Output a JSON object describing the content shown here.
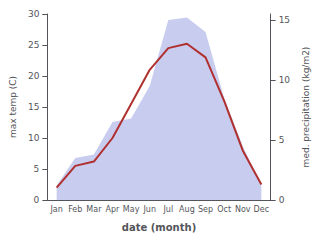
{
  "chart_data": {
    "type": "line",
    "categories": [
      "Jan",
      "Feb",
      "Mar",
      "Apr",
      "May",
      "Jun",
      "Jul",
      "Aug",
      "Sep",
      "Oct",
      "Nov",
      "Dec"
    ],
    "xlabel": "date (month)",
    "ylabel": "max temp (C)",
    "y2label": "med. precipitation (kg/m2)",
    "series": [
      {
        "type": "area",
        "axis": "y2",
        "color": "#b0b8e8",
        "values": [
          1.2,
          3.5,
          3.8,
          6.5,
          6.8,
          9.5,
          15.0,
          15.2,
          14.0,
          8.5,
          4.5,
          1.2
        ]
      },
      {
        "type": "line",
        "color": "#b03030",
        "values": [
          2.0,
          5.5,
          6.2,
          10.0,
          15.5,
          21.0,
          24.5,
          25.2,
          23.0,
          16.0,
          8.0,
          2.5
        ]
      }
    ],
    "ylim": [
      0,
      30
    ],
    "yticks": [
      0,
      5,
      10,
      15,
      20,
      25,
      30
    ],
    "y2lim": [
      0,
      15.5
    ],
    "y2ticks": [
      0,
      5,
      10,
      15
    ],
    "grid": false
  }
}
